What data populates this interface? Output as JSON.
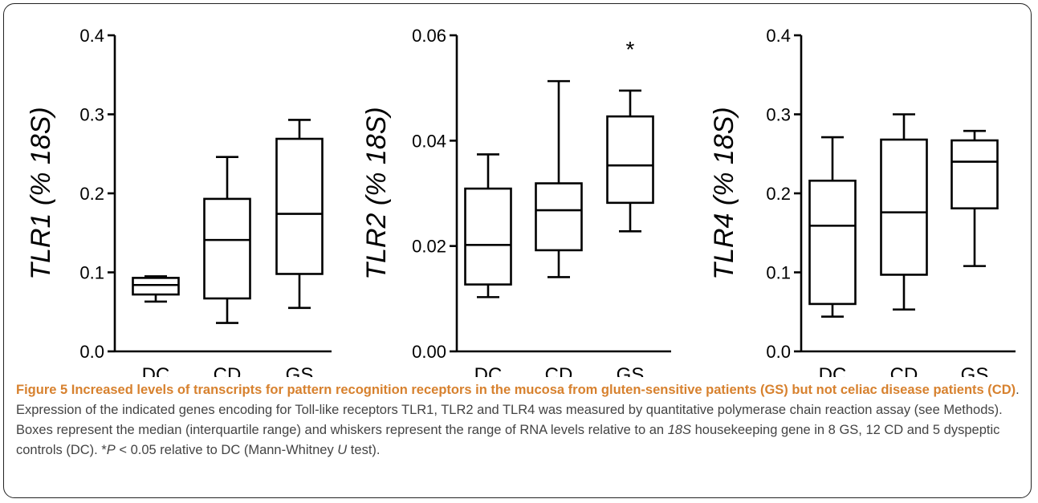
{
  "chart_data": [
    {
      "type": "box",
      "ylabel": "TLR1 (% 18S)",
      "ylim": [
        0,
        0.4
      ],
      "yticks": [
        "0.0",
        "0.1",
        "0.2",
        "0.3",
        "0.4"
      ],
      "categories": [
        "DC",
        "CD",
        "GS"
      ],
      "boxes": [
        {
          "category": "DC",
          "min": 0.063,
          "q1": 0.072,
          "median": 0.084,
          "q3": 0.093,
          "max": 0.095
        },
        {
          "category": "CD",
          "min": 0.036,
          "q1": 0.067,
          "median": 0.141,
          "q3": 0.193,
          "max": 0.246
        },
        {
          "category": "GS",
          "min": 0.055,
          "q1": 0.098,
          "median": 0.174,
          "q3": 0.269,
          "max": 0.293
        }
      ],
      "annotations": []
    },
    {
      "type": "box",
      "ylabel": "TLR2 (% 18S)",
      "ylim": [
        0,
        0.06
      ],
      "yticks": [
        "0.00",
        "0.02",
        "0.04",
        "0.06"
      ],
      "categories": [
        "DC",
        "CD",
        "GS"
      ],
      "boxes": [
        {
          "category": "DC",
          "min": 0.0103,
          "q1": 0.0127,
          "median": 0.0202,
          "q3": 0.0309,
          "max": 0.0374
        },
        {
          "category": "CD",
          "min": 0.0141,
          "q1": 0.0192,
          "median": 0.0268,
          "q3": 0.0319,
          "max": 0.0513
        },
        {
          "category": "GS",
          "min": 0.0228,
          "q1": 0.0282,
          "median": 0.0353,
          "q3": 0.0446,
          "max": 0.0495
        }
      ],
      "annotations": [
        {
          "category": "GS",
          "text": "*"
        }
      ]
    },
    {
      "type": "box",
      "ylabel": "TLR4 (% 18S)",
      "ylim": [
        0,
        0.4
      ],
      "yticks": [
        "0.0",
        "0.1",
        "0.2",
        "0.3",
        "0.4"
      ],
      "categories": [
        "DC",
        "CD",
        "GS"
      ],
      "boxes": [
        {
          "category": "DC",
          "min": 0.044,
          "q1": 0.06,
          "median": 0.159,
          "q3": 0.216,
          "max": 0.271
        },
        {
          "category": "CD",
          "min": 0.053,
          "q1": 0.097,
          "median": 0.176,
          "q3": 0.268,
          "max": 0.3
        },
        {
          "category": "GS",
          "min": 0.108,
          "q1": 0.181,
          "median": 0.24,
          "q3": 0.267,
          "max": 0.279
        }
      ],
      "annotations": []
    }
  ],
  "caption": {
    "title": "Figure 5 Increased levels of transcripts for pattern recognition receptors in the mucosa from gluten-sensitive patients (GS) but not celiac disease patients (CD)",
    "text_1": ". Expression of the indicated genes encoding for Toll-like receptors TLR1, TLR2 and TLR4 was measured by quantitative polymerase chain reaction assay (see Methods). Boxes represent the median (interquartile range) and whiskers represent the range of RNA levels relative to an ",
    "italic_1": "18S",
    "text_2": " housekeeping gene in 8 GS, 12 CD and 5 dyspeptic controls (DC). *",
    "italic_2": "P",
    "text_3": " < 0.05 relative to DC (Mann-Whitney ",
    "italic_3": "U",
    "text_4": " test)."
  }
}
